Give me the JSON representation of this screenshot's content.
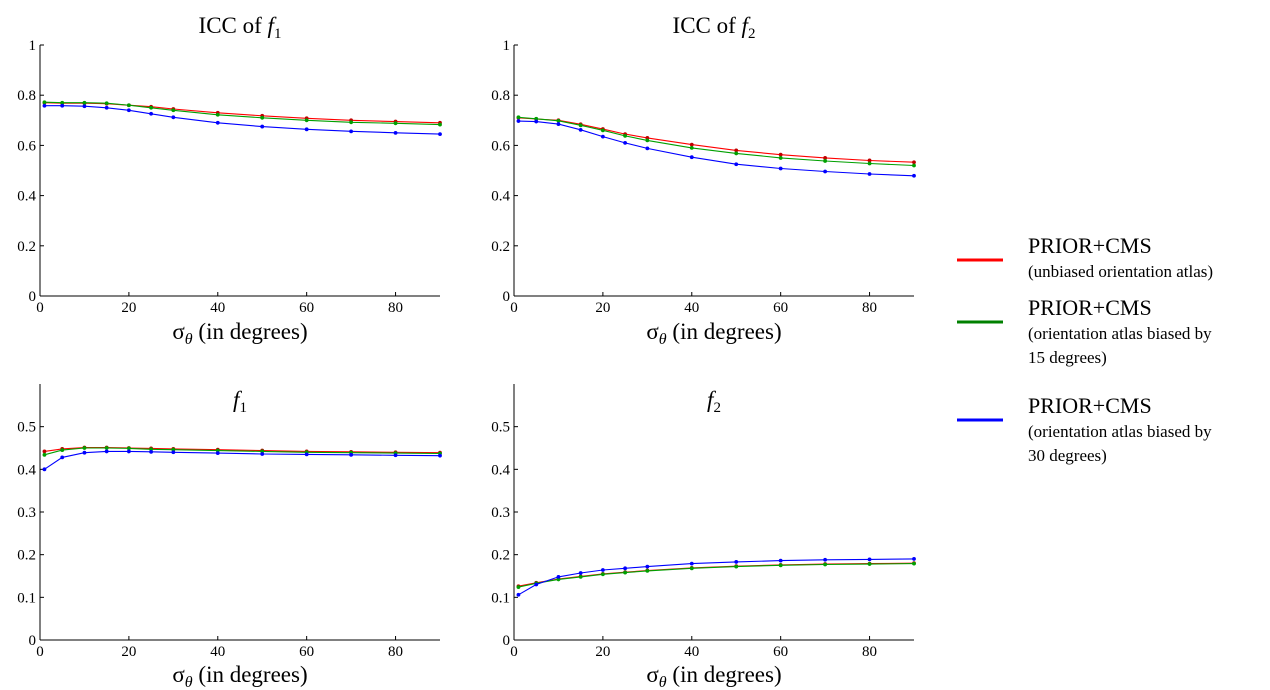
{
  "chart_data": [
    {
      "type": "line",
      "title": "ICC of f1",
      "title_parts": {
        "prefix": "ICC of ",
        "var": "f",
        "sub": "1"
      },
      "xlabel": "σθ (in degrees)",
      "xlabel_parts": {
        "sym": "σ",
        "sub": "θ",
        "rest": " (in degrees)"
      },
      "xlim": [
        0,
        90
      ],
      "ylim": [
        0,
        1
      ],
      "xticks": [
        0,
        20,
        40,
        60,
        80
      ],
      "yticks": [
        0,
        0.2,
        0.4,
        0.6,
        0.8,
        1
      ],
      "ytick_labels": [
        "0",
        "0.2",
        "0.4",
        "0.6",
        "0.8",
        "1"
      ],
      "x": [
        1,
        5,
        10,
        15,
        20,
        25,
        30,
        40,
        50,
        60,
        70,
        80,
        90
      ],
      "series": [
        {
          "key": "red",
          "values": [
            0.77,
            0.768,
            0.768,
            0.766,
            0.76,
            0.754,
            0.745,
            0.73,
            0.718,
            0.708,
            0.7,
            0.695,
            0.69
          ]
        },
        {
          "key": "green",
          "values": [
            0.772,
            0.77,
            0.77,
            0.768,
            0.76,
            0.75,
            0.74,
            0.722,
            0.71,
            0.7,
            0.692,
            0.688,
            0.683
          ]
        },
        {
          "key": "blue",
          "values": [
            0.758,
            0.758,
            0.756,
            0.75,
            0.74,
            0.726,
            0.712,
            0.69,
            0.675,
            0.664,
            0.656,
            0.65,
            0.645
          ]
        }
      ]
    },
    {
      "type": "line",
      "title": "ICC of f2",
      "title_parts": {
        "prefix": "ICC of ",
        "var": "f",
        "sub": "2"
      },
      "xlabel": "σθ (in degrees)",
      "xlabel_parts": {
        "sym": "σ",
        "sub": "θ",
        "rest": " (in degrees)"
      },
      "xlim": [
        0,
        90
      ],
      "ylim": [
        0,
        1
      ],
      "xticks": [
        0,
        20,
        40,
        60,
        80
      ],
      "yticks": [
        0,
        0.2,
        0.4,
        0.6,
        0.8,
        1
      ],
      "ytick_labels": [
        "0",
        "0.2",
        "0.4",
        "0.6",
        "0.8",
        "1"
      ],
      "x": [
        1,
        5,
        10,
        15,
        20,
        25,
        30,
        40,
        50,
        60,
        70,
        80,
        90
      ],
      "series": [
        {
          "key": "red",
          "values": [
            0.71,
            0.705,
            0.7,
            0.684,
            0.665,
            0.645,
            0.63,
            0.603,
            0.58,
            0.563,
            0.55,
            0.54,
            0.533
          ]
        },
        {
          "key": "green",
          "values": [
            0.712,
            0.706,
            0.698,
            0.68,
            0.66,
            0.638,
            0.62,
            0.59,
            0.568,
            0.55,
            0.538,
            0.528,
            0.52
          ]
        },
        {
          "key": "blue",
          "values": [
            0.697,
            0.695,
            0.685,
            0.662,
            0.635,
            0.61,
            0.588,
            0.553,
            0.525,
            0.508,
            0.496,
            0.486,
            0.479
          ]
        }
      ]
    },
    {
      "type": "line",
      "title": "f1",
      "title_parts": {
        "prefix": "",
        "var": "f",
        "sub": "1"
      },
      "xlabel": "σθ (in degrees)",
      "xlabel_parts": {
        "sym": "σ",
        "sub": "θ",
        "rest": " (in degrees)"
      },
      "xlim": [
        0,
        90
      ],
      "ylim": [
        0,
        0.6
      ],
      "xticks": [
        0,
        20,
        40,
        60,
        80
      ],
      "yticks": [
        0,
        0.1,
        0.2,
        0.3,
        0.4,
        0.5
      ],
      "ytick_labels": [
        "0",
        "0.1",
        "0.2",
        "0.3",
        "0.4",
        "0.5"
      ],
      "x": [
        1,
        5,
        10,
        15,
        20,
        25,
        30,
        40,
        50,
        60,
        70,
        80,
        90
      ],
      "series": [
        {
          "key": "red",
          "values": [
            0.442,
            0.448,
            0.451,
            0.451,
            0.45,
            0.449,
            0.448,
            0.446,
            0.444,
            0.442,
            0.441,
            0.44,
            0.439
          ]
        },
        {
          "key": "green",
          "values": [
            0.434,
            0.445,
            0.45,
            0.45,
            0.449,
            0.447,
            0.446,
            0.444,
            0.442,
            0.44,
            0.439,
            0.438,
            0.437
          ]
        },
        {
          "key": "blue",
          "values": [
            0.4,
            0.428,
            0.439,
            0.442,
            0.442,
            0.441,
            0.44,
            0.438,
            0.436,
            0.435,
            0.434,
            0.433,
            0.432
          ]
        }
      ]
    },
    {
      "type": "line",
      "title": "f2",
      "title_parts": {
        "prefix": "",
        "var": "f",
        "sub": "2"
      },
      "xlabel": "σθ (in degrees)",
      "xlabel_parts": {
        "sym": "σ",
        "sub": "θ",
        "rest": " (in degrees)"
      },
      "xlim": [
        0,
        90
      ],
      "ylim": [
        0,
        0.6
      ],
      "xticks": [
        0,
        20,
        40,
        60,
        80
      ],
      "yticks": [
        0,
        0.1,
        0.2,
        0.3,
        0.4,
        0.5
      ],
      "ytick_labels": [
        "0",
        "0.1",
        "0.2",
        "0.3",
        "0.4",
        "0.5"
      ],
      "x": [
        1,
        5,
        10,
        15,
        20,
        25,
        30,
        40,
        50,
        60,
        70,
        80,
        90
      ],
      "series": [
        {
          "key": "red",
          "values": [
            0.126,
            0.134,
            0.143,
            0.149,
            0.155,
            0.159,
            0.163,
            0.169,
            0.173,
            0.176,
            0.178,
            0.179,
            0.18
          ]
        },
        {
          "key": "green",
          "values": [
            0.124,
            0.133,
            0.142,
            0.148,
            0.154,
            0.158,
            0.162,
            0.168,
            0.172,
            0.175,
            0.177,
            0.178,
            0.179
          ]
        },
        {
          "key": "blue",
          "values": [
            0.106,
            0.13,
            0.148,
            0.157,
            0.164,
            0.168,
            0.172,
            0.179,
            0.183,
            0.186,
            0.188,
            0.189,
            0.19
          ]
        }
      ]
    }
  ],
  "legend": {
    "placement": "right",
    "entries": [
      {
        "key": "red",
        "color": "#ff0000",
        "label": "PRIOR+CMS",
        "desc": [
          "(unbiased orientation atlas)"
        ]
      },
      {
        "key": "green",
        "color": "#008000",
        "label": "PRIOR+CMS",
        "desc": [
          "(orientation atlas biased by",
          "15 degrees)"
        ]
      },
      {
        "key": "blue",
        "color": "#0000ff",
        "label": "PRIOR+CMS",
        "desc": [
          "(orientation atlas biased by",
          "30 degrees)"
        ]
      }
    ]
  },
  "colors": {
    "red": "#ff0000",
    "green": "#00a000",
    "blue": "#0000ff",
    "marker_red": "#c00000",
    "marker_green": "#00a000",
    "marker_blue": "#0000ff"
  }
}
